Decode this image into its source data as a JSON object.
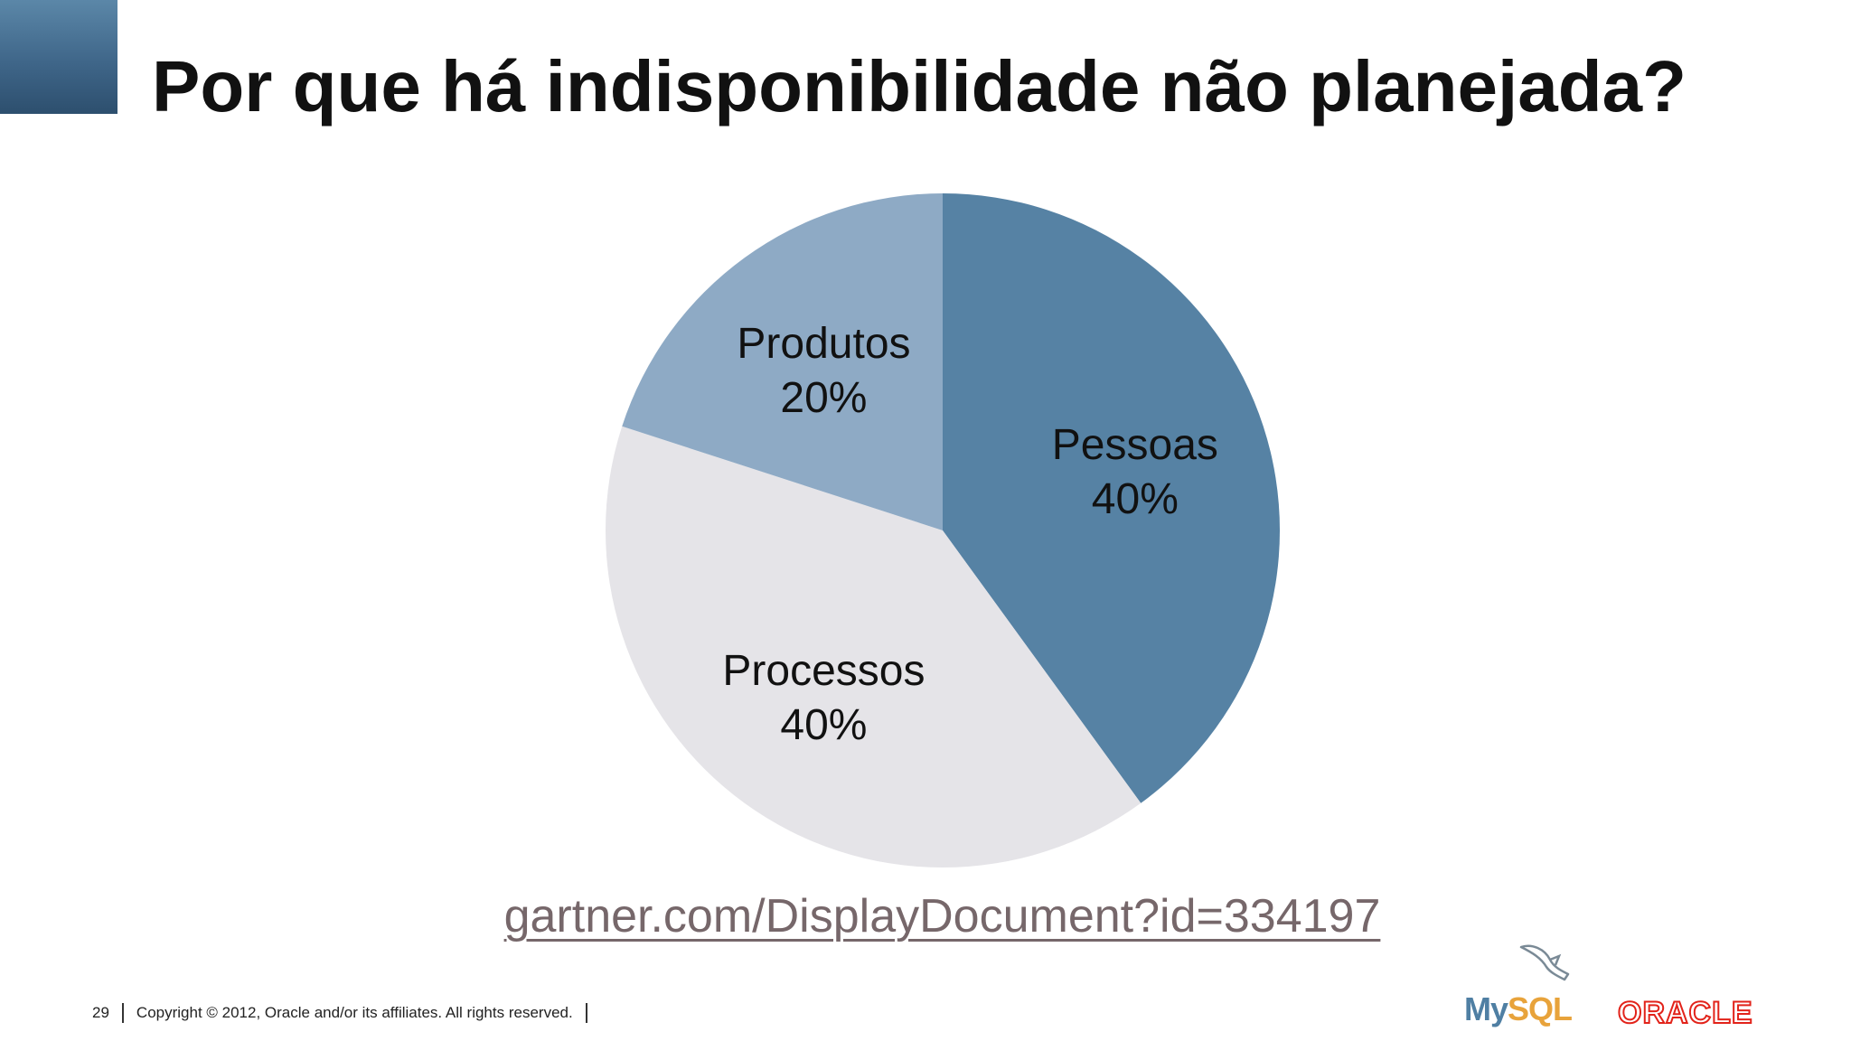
{
  "slide": {
    "title": "Por que há indisponibilidade não planejada?",
    "source_link": "gartner.com/DisplayDocument?id=334197",
    "footer": {
      "page_number": "29",
      "copyright": "Copyright © 2012, Oracle and/or its affiliates. All rights reserved."
    },
    "logos": {
      "mysql_my": "My",
      "mysql_sql": "SQL",
      "oracle": "ORACLE"
    },
    "colors": {
      "accent_block": "#3f6689",
      "link": "#76676a"
    }
  },
  "chart_data": {
    "type": "pie",
    "slices": [
      {
        "category": "Pessoas",
        "value": 40,
        "label": "40%",
        "color": "#5682a4"
      },
      {
        "category": "Processos",
        "value": 40,
        "label": "40%",
        "color": "#e5e4e8"
      },
      {
        "category": "Produtos",
        "value": 20,
        "label": "20%",
        "color": "#8eaac5"
      }
    ],
    "start_angle": "12 o'clock",
    "direction": "clockwise",
    "legend": "none (labels inside slices)"
  }
}
